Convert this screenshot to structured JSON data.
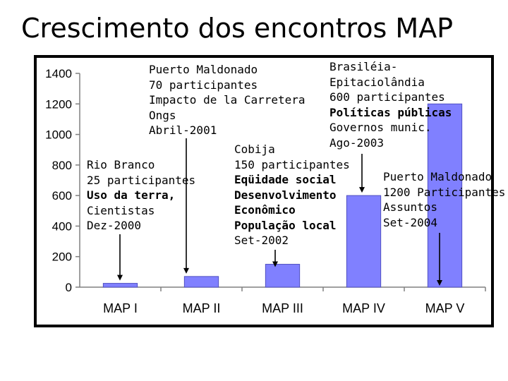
{
  "slide": {
    "title": "Crescimento dos encontros MAP"
  },
  "colors": {
    "bar_fill": "#8080ff",
    "bar_stroke": "#5050c0",
    "axis": "#808080",
    "frame": "#000000"
  },
  "chart_data": {
    "type": "bar",
    "categories": [
      "MAP I",
      "MAP II",
      "MAP III",
      "MAP IV",
      "MAP V"
    ],
    "values": [
      25,
      70,
      150,
      600,
      1200
    ],
    "ylim": [
      0,
      1400
    ],
    "yticks": [
      "0",
      "200",
      "400",
      "600",
      "800",
      "1000",
      "1200",
      "1400"
    ],
    "grid": false,
    "legend": "none"
  },
  "annotations": [
    {
      "lines": [
        {
          "text": "Rio Branco",
          "bold": false
        },
        {
          "text": "25 participantes",
          "bold": false
        },
        {
          "text": "Uso da terra,",
          "bold": true
        },
        {
          "text": "Cientistas",
          "bold": false
        },
        {
          "text": "Dez-2000",
          "bold": false
        }
      ]
    },
    {
      "lines": [
        {
          "text": "Puerto Maldonado",
          "bold": false
        },
        {
          "text": "70 participantes",
          "bold": false
        },
        {
          "text": "Impacto de la Carretera",
          "bold": false
        },
        {
          "text": "Ongs",
          "bold": false
        },
        {
          "text": "Abril-2001",
          "bold": false
        }
      ]
    },
    {
      "lines": [
        {
          "text": "Cobija",
          "bold": false
        },
        {
          "text": "150 participantes",
          "bold": false
        },
        {
          "text": "Eqüidade social",
          "bold": true
        },
        {
          "text": "Desenvolvimento",
          "bold": true
        },
        {
          "text": "Econômico",
          "bold": true
        },
        {
          "text": "População local",
          "bold": true
        },
        {
          "text": "Set-2002",
          "bold": false
        }
      ]
    },
    {
      "lines": [
        {
          "text": "Brasiléia-",
          "bold": false
        },
        {
          "text": "Epitaciolândia",
          "bold": false
        },
        {
          "text": "600 participantes",
          "bold": false
        },
        {
          "text": "Políticas públicas",
          "bold": true
        },
        {
          "text": "Governos munic.",
          "bold": false
        },
        {
          "text": "Ago-2003",
          "bold": false
        }
      ]
    },
    {
      "lines": [
        {
          "text": "Puerto Maldonado",
          "bold": false
        },
        {
          "text": "1200 Participantes",
          "bold": false
        },
        {
          "text": "Assuntos",
          "bold": false
        },
        {
          "text": "Set-2004",
          "bold": false
        }
      ]
    }
  ]
}
